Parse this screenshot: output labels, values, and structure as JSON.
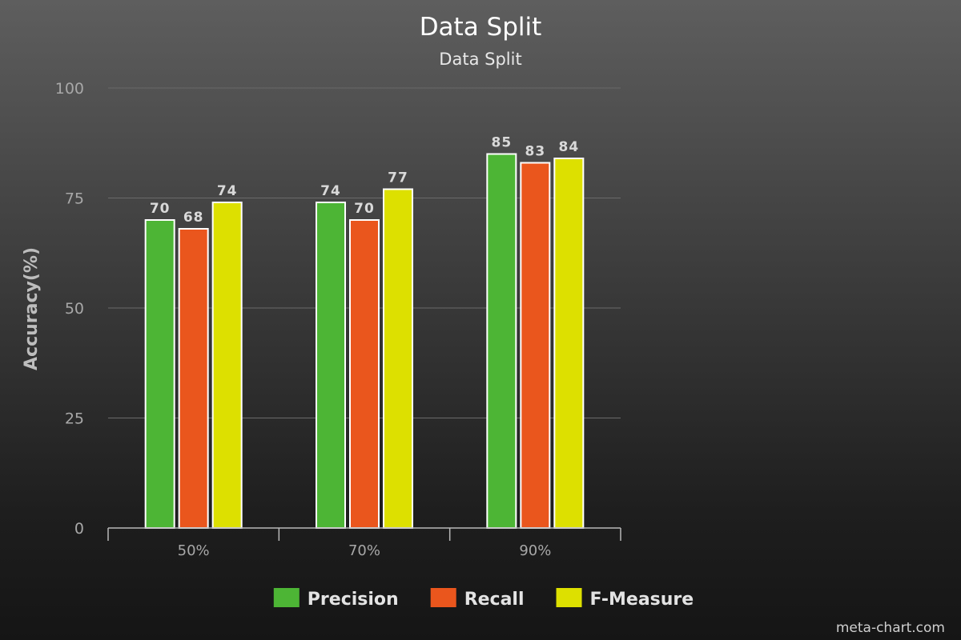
{
  "chart_data": {
    "type": "bar",
    "title": "Data Split",
    "subtitle": "Data Split",
    "xlabel": "",
    "ylabel": "Accuracy(%)",
    "ylim": [
      0,
      100
    ],
    "yticks": [
      0,
      25,
      50,
      75,
      100
    ],
    "grid": true,
    "legend_position": "bottom",
    "categories": [
      "50%",
      "70%",
      "90%"
    ],
    "series": [
      {
        "name": "Precision",
        "color": "#4db535",
        "values": [
          70,
          74,
          85
        ]
      },
      {
        "name": "Recall",
        "color": "#ea561d",
        "values": [
          68,
          70,
          83
        ]
      },
      {
        "name": "F-Measure",
        "color": "#dde000",
        "values": [
          74,
          77,
          84
        ]
      }
    ]
  },
  "footer": {
    "watermark": "meta-chart.com"
  }
}
